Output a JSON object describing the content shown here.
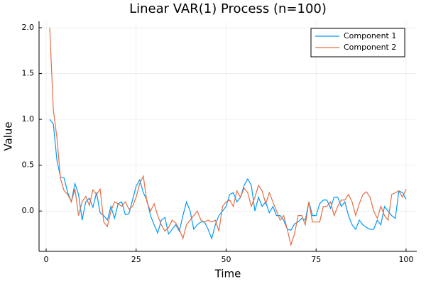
{
  "chart_data": {
    "type": "line",
    "title": "Linear VAR(1) Process (n=100)",
    "xlabel": "Time",
    "ylabel": "Value",
    "x": [
      1,
      2,
      3,
      4,
      5,
      6,
      7,
      8,
      9,
      10,
      11,
      12,
      13,
      14,
      15,
      16,
      17,
      18,
      19,
      20,
      21,
      22,
      23,
      24,
      25,
      26,
      27,
      28,
      29,
      30,
      31,
      32,
      33,
      34,
      35,
      36,
      37,
      38,
      39,
      40,
      41,
      42,
      43,
      44,
      45,
      46,
      47,
      48,
      49,
      50,
      51,
      52,
      53,
      54,
      55,
      56,
      57,
      58,
      59,
      60,
      61,
      62,
      63,
      64,
      65,
      66,
      67,
      68,
      69,
      70,
      71,
      72,
      73,
      74,
      75,
      76,
      77,
      78,
      79,
      80,
      81,
      82,
      83,
      84,
      85,
      86,
      87,
      88,
      89,
      90,
      91,
      92,
      93,
      94,
      95,
      96,
      97,
      98,
      99,
      100
    ],
    "series": [
      {
        "name": "Component 1",
        "color": "#009af9",
        "values": [
          1.0,
          0.95,
          0.55,
          0.37,
          0.36,
          0.2,
          0.1,
          0.3,
          0.18,
          -0.1,
          0.1,
          0.14,
          0.04,
          0.2,
          -0.02,
          -0.05,
          -0.1,
          0.05,
          -0.08,
          0.08,
          0.1,
          -0.04,
          -0.03,
          0.12,
          0.27,
          0.34,
          0.2,
          0.12,
          -0.05,
          -0.15,
          -0.24,
          -0.1,
          -0.07,
          -0.25,
          -0.2,
          -0.15,
          -0.22,
          -0.05,
          0.1,
          0.0,
          -0.2,
          -0.15,
          -0.12,
          -0.12,
          -0.2,
          -0.3,
          -0.15,
          -0.05,
          0.0,
          0.05,
          0.18,
          0.2,
          0.1,
          0.15,
          0.28,
          0.35,
          0.28,
          0.0,
          0.15,
          0.05,
          0.1,
          -0.02,
          0.05,
          -0.05,
          -0.05,
          -0.1,
          -0.2,
          -0.21,
          -0.14,
          -0.12,
          -0.08,
          -0.1,
          0.1,
          -0.05,
          -0.05,
          0.08,
          0.12,
          0.12,
          0.03,
          0.15,
          0.15,
          0.05,
          0.1,
          -0.05,
          -0.15,
          -0.2,
          -0.1,
          -0.15,
          -0.18,
          -0.2,
          -0.2,
          -0.1,
          -0.15,
          0.05,
          0.0,
          -0.05,
          -0.08,
          0.22,
          0.2,
          0.13
        ]
      },
      {
        "name": "Component 2",
        "color": "#e26f46",
        "values": [
          2.0,
          1.1,
          0.8,
          0.35,
          0.22,
          0.18,
          0.1,
          0.24,
          -0.05,
          0.1,
          0.16,
          0.06,
          0.23,
          0.18,
          0.24,
          -0.12,
          -0.17,
          0.0,
          0.1,
          0.08,
          0.05,
          0.1,
          0.02,
          0.05,
          0.15,
          0.3,
          0.38,
          0.1,
          0.0,
          0.08,
          -0.05,
          -0.15,
          -0.22,
          -0.18,
          -0.1,
          -0.13,
          -0.2,
          -0.3,
          -0.15,
          -0.1,
          -0.05,
          0.0,
          -0.1,
          -0.12,
          -0.1,
          -0.12,
          -0.1,
          -0.22,
          0.05,
          0.1,
          0.12,
          0.05,
          0.22,
          0.15,
          0.25,
          0.2,
          0.05,
          0.15,
          0.28,
          0.22,
          0.08,
          0.2,
          0.1,
          0.0,
          -0.1,
          -0.05,
          -0.2,
          -0.37,
          -0.25,
          -0.05,
          -0.05,
          -0.15,
          0.1,
          -0.12,
          -0.12,
          -0.12,
          0.05,
          0.05,
          0.1,
          -0.05,
          0.05,
          0.12,
          0.12,
          0.18,
          0.1,
          -0.05,
          0.08,
          0.18,
          0.21,
          0.15,
          0.0,
          -0.08,
          0.05,
          -0.05,
          -0.1,
          0.18,
          0.2,
          0.22,
          0.15,
          0.24
        ]
      }
    ],
    "xlim": [
      -1.97,
      102.97
    ],
    "xticks": [
      0,
      25,
      50,
      75,
      100
    ],
    "ylim": [
      -0.44,
      2.07
    ],
    "yticks": [
      {
        "value": 0,
        "label": "0.0"
      },
      0.5,
      {
        "value": 1,
        "label": "1.0"
      },
      1.5,
      {
        "value": 2,
        "label": "2.0"
      }
    ],
    "grid": true,
    "legend": "topright"
  }
}
